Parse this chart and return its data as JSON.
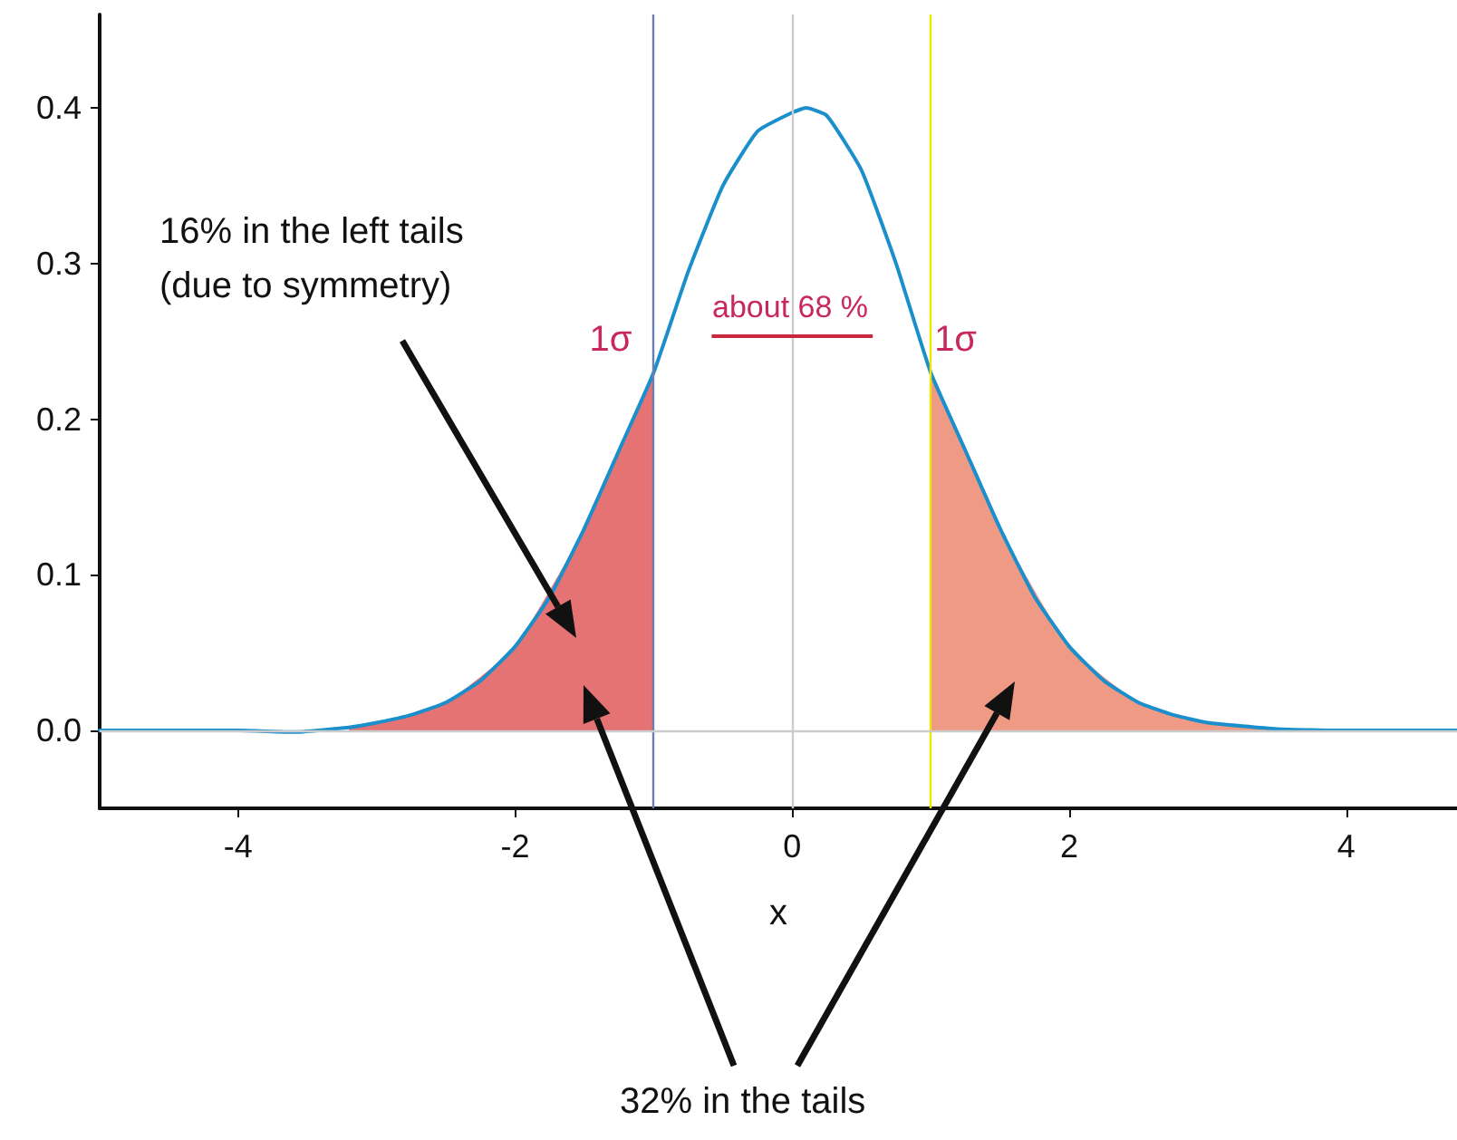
{
  "chart_data": {
    "type": "line",
    "xlabel": "x",
    "xlim": [
      -5,
      4.8
    ],
    "ylim": [
      -0.05,
      0.46
    ],
    "xticks": [
      -4,
      -2,
      0,
      2,
      4
    ],
    "yticks": [
      {
        "value": 0,
        "label": "0.0"
      },
      {
        "value": 0.1,
        "label": "0.1"
      },
      {
        "value": 0.2,
        "label": "0.2"
      },
      {
        "value": 0.3,
        "label": "0.3"
      },
      {
        "value": 0.4,
        "label": "0.4"
      }
    ],
    "grid": false,
    "marker": "none",
    "line_style": "solid",
    "series": [
      {
        "type": "area",
        "color": "#e57373",
        "x": [
          -3.2,
          -3,
          -2.5,
          -2,
          -1.5,
          -1
        ],
        "values": [
          0.002,
          0.005,
          0.018,
          0.054,
          0.13,
          0.23
        ]
      },
      {
        "type": "area",
        "color": "#ee9a85",
        "x": [
          1,
          1.5,
          2,
          2.5,
          3,
          3.5
        ],
        "values": [
          0.23,
          0.13,
          0.054,
          0.018,
          0.005,
          0.001
        ]
      },
      {
        "color": "#1a8fcc",
        "x": [
          -5,
          -4.5,
          -4,
          -3.6,
          -3.2,
          -3,
          -2.75,
          -2.5,
          -2.25,
          -2,
          -1.75,
          -1.5,
          -1.25,
          -1,
          -0.75,
          -0.5,
          -0.25,
          0,
          0.1,
          0.25,
          0.5,
          0.75,
          1,
          1.25,
          1.5,
          1.75,
          2,
          2.25,
          2.5,
          2.75,
          3,
          3.5,
          4,
          4.5,
          4.8
        ],
        "values": [
          0,
          0,
          0,
          -0.001,
          0.002,
          0.005,
          0.01,
          0.018,
          0.032,
          0.054,
          0.086,
          0.13,
          0.18,
          0.23,
          0.295,
          0.35,
          0.385,
          0.397,
          0.4,
          0.395,
          0.36,
          0.3,
          0.23,
          0.18,
          0.13,
          0.086,
          0.054,
          0.032,
          0.018,
          0.01,
          0.005,
          0.001,
          0,
          0,
          0
        ]
      }
    ],
    "ref_lines": [
      {
        "axis": "x",
        "value": -1,
        "color": "#6a7fb0"
      },
      {
        "axis": "x",
        "value": 1,
        "color": "#f2e600"
      },
      {
        "axis": "x",
        "value": 0,
        "color": "#cccccc"
      },
      {
        "axis": "y",
        "value": 0,
        "color": "#cccccc"
      }
    ],
    "annotations": [
      "16% in the left tails\n(due to symmetry)",
      "about 68 %",
      {
        "text": "1σ",
        "x": -1,
        "y": 0.23
      },
      {
        "text": "1σ",
        "x": 1,
        "y": 0.23
      },
      "32% in the tails"
    ]
  }
}
